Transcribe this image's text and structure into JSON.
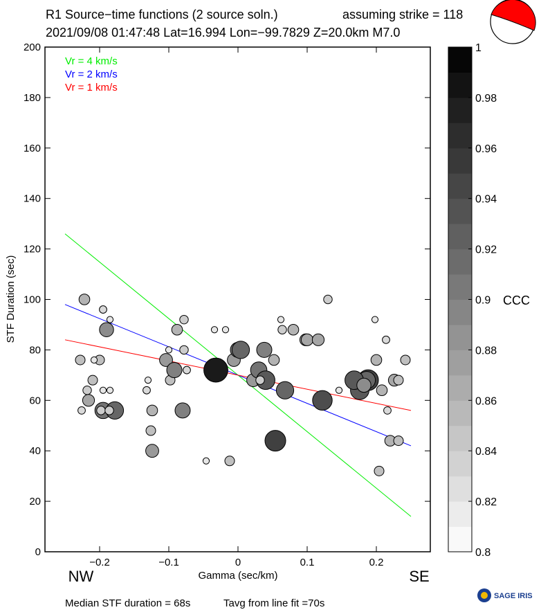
{
  "header": {
    "title_line1": "R1 Source−time functions (2 source soln.)",
    "strike_text": "assuming strike = 118",
    "title_line2": "2021/09/08 01:47:48  Lat=16.994 Lon=−99.7829  Z=20.0km  M7.0"
  },
  "footer": {
    "median": "Median STF duration = 68s",
    "tavg": "Tavg from line fit =70s",
    "logo_text": "SAGE IRIS"
  },
  "direction_labels": {
    "left": "NW",
    "right": "SE"
  },
  "colorbar": {
    "label": "CCC",
    "range": [
      0.8,
      1.0
    ],
    "ticks": [
      "1",
      "0.98",
      "0.96",
      "0.94",
      "0.92",
      "0.9",
      "0.88",
      "0.86",
      "0.84",
      "0.82",
      "0.8"
    ],
    "tick_values": [
      1,
      0.98,
      0.96,
      0.94,
      0.92,
      0.9,
      0.88,
      0.86,
      0.84,
      0.82,
      0.8
    ],
    "steps": 20
  },
  "beachball": {
    "fill": "#ff0000"
  },
  "chart_data": {
    "type": "scatter",
    "xlabel": "Gamma (sec/km)",
    "ylabel": "STF Duration (sec)",
    "xlim": [
      -0.279,
      0.278
    ],
    "ylim": [
      0,
      200
    ],
    "xticks": [
      -0.2,
      -0.1,
      0,
      0.1,
      0.2
    ],
    "xtick_labels": [
      "−0.2",
      "−0.1",
      "0",
      "0.1",
      "0.2"
    ],
    "yticks": [
      0,
      20,
      40,
      60,
      80,
      100,
      120,
      140,
      160,
      180,
      200
    ],
    "ytick_labels": [
      "0",
      "20",
      "40",
      "60",
      "80",
      "100",
      "120",
      "140",
      "160",
      "180",
      "200"
    ],
    "grid": false,
    "legend_placement": "top-left",
    "lines": [
      {
        "name": "Vr = 4 km/s",
        "color": "#00ee00",
        "x": [
          -0.25,
          0.25
        ],
        "y": [
          126,
          14
        ]
      },
      {
        "name": "Vr = 2 km/s",
        "color": "#0000ff",
        "x": [
          -0.25,
          0.25
        ],
        "y": [
          98,
          42
        ]
      },
      {
        "name": "Vr = 1 km/s",
        "color": "#ff0000",
        "x": [
          -0.25,
          0.25
        ],
        "y": [
          84,
          56
        ]
      }
    ],
    "points_fields": [
      "gamma",
      "duration",
      "ccc"
    ],
    "points": [
      [
        -0.228,
        76,
        0.85
      ],
      [
        -0.222,
        100,
        0.86
      ],
      [
        -0.226,
        56,
        0.83
      ],
      [
        -0.218,
        64,
        0.84
      ],
      [
        -0.21,
        68,
        0.85
      ],
      [
        -0.216,
        60,
        0.87
      ],
      [
        -0.2,
        76,
        0.85
      ],
      [
        -0.208,
        76,
        0.82
      ],
      [
        -0.195,
        96,
        0.83
      ],
      [
        -0.19,
        88,
        0.89
      ],
      [
        -0.185,
        92,
        0.82
      ],
      [
        -0.195,
        64,
        0.82
      ],
      [
        -0.185,
        64,
        0.82
      ],
      [
        -0.195,
        56,
        0.91
      ],
      [
        -0.178,
        56,
        0.92
      ],
      [
        -0.198,
        56,
        0.84
      ],
      [
        -0.186,
        56,
        0.84
      ],
      [
        -0.13,
        68,
        0.82
      ],
      [
        -0.132,
        64,
        0.83
      ],
      [
        -0.124,
        56,
        0.86
      ],
      [
        -0.126,
        48,
        0.85
      ],
      [
        -0.124,
        40,
        0.88
      ],
      [
        -0.1,
        80,
        0.82
      ],
      [
        -0.104,
        76,
        0.88
      ],
      [
        -0.098,
        68,
        0.85
      ],
      [
        -0.092,
        72,
        0.9
      ],
      [
        -0.088,
        88,
        0.86
      ],
      [
        -0.078,
        92,
        0.84
      ],
      [
        -0.078,
        80,
        0.84
      ],
      [
        -0.074,
        72,
        0.83
      ],
      [
        -0.08,
        56,
        0.9
      ],
      [
        -0.032,
        72,
        0.98
      ],
      [
        -0.046,
        36,
        0.82
      ],
      [
        -0.034,
        88,
        0.82
      ],
      [
        -0.018,
        88,
        0.82
      ],
      [
        -0.012,
        36,
        0.85
      ],
      [
        -0.006,
        76,
        0.88
      ],
      [
        0.0,
        80,
        0.9
      ],
      [
        0.004,
        80,
        0.92
      ],
      [
        0.022,
        68,
        0.88
      ],
      [
        0.03,
        72,
        0.91
      ],
      [
        0.038,
        80,
        0.9
      ],
      [
        0.04,
        68,
        0.93
      ],
      [
        0.032,
        68,
        0.84
      ],
      [
        0.052,
        76,
        0.86
      ],
      [
        0.054,
        44,
        0.95
      ],
      [
        0.068,
        64,
        0.92
      ],
      [
        0.062,
        92,
        0.82
      ],
      [
        0.064,
        88,
        0.84
      ],
      [
        0.08,
        88,
        0.86
      ],
      [
        0.098,
        84,
        0.87
      ],
      [
        0.1,
        84,
        0.87
      ],
      [
        0.116,
        84,
        0.87
      ],
      [
        0.13,
        100,
        0.84
      ],
      [
        0.122,
        60,
        0.94
      ],
      [
        0.146,
        64,
        0.82
      ],
      [
        0.176,
        64,
        0.93
      ],
      [
        0.188,
        68,
        0.95
      ],
      [
        0.186,
        68,
        0.92
      ],
      [
        0.168,
        68,
        0.93
      ],
      [
        0.182,
        66,
        0.89
      ],
      [
        0.2,
        76,
        0.86
      ],
      [
        0.198,
        92,
        0.82
      ],
      [
        0.214,
        84,
        0.83
      ],
      [
        0.208,
        64,
        0.86
      ],
      [
        0.216,
        56,
        0.83
      ],
      [
        0.226,
        68,
        0.87
      ],
      [
        0.232,
        68,
        0.85
      ],
      [
        0.22,
        44,
        0.86
      ],
      [
        0.232,
        44,
        0.85
      ],
      [
        0.204,
        32,
        0.85
      ],
      [
        0.242,
        76,
        0.85
      ]
    ]
  }
}
